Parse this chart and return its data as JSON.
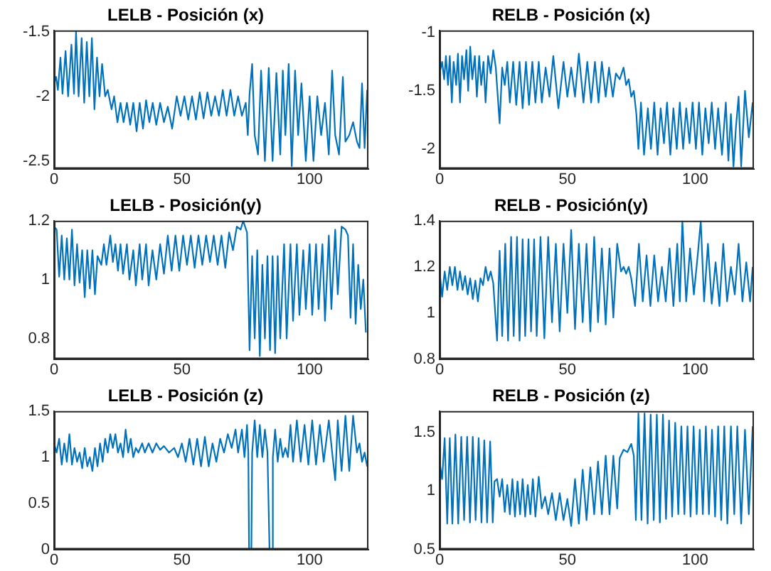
{
  "chart_data": [
    {
      "type": "line",
      "title": "LELB - Posición (x)",
      "color": "#0072bd",
      "xlim": [
        0,
        123
      ],
      "xticks": [
        0,
        50,
        100
      ],
      "ylim": [
        -2.56,
        -1.49
      ],
      "yticks": [
        -2.5,
        -2,
        -1.5
      ],
      "x": [
        0,
        0.8,
        1.5,
        2.5,
        3.3,
        4.5,
        5.5,
        6.8,
        7.8,
        8.6,
        9.6,
        10.8,
        11.8,
        12.8,
        13.8,
        14.8,
        15.8,
        16.8,
        17.8,
        18.8,
        20,
        21,
        22.5,
        23.5,
        24.8,
        26,
        27.2,
        28.5,
        29.8,
        31,
        32.3,
        33.5,
        34.8,
        36,
        37.3,
        38.6,
        40,
        41.5,
        43,
        44.5,
        46.2,
        48,
        49.5,
        51,
        52.5,
        54,
        55.5,
        57,
        58.5,
        60,
        61.5,
        63,
        64.5,
        66,
        67.5,
        69,
        70.5,
        72,
        73.5,
        75,
        75.8,
        76.5,
        77.5,
        78.5,
        79.8,
        81,
        82.5,
        84,
        85.5,
        87,
        88.5,
        89.5,
        90.5,
        91.8,
        93,
        94.3,
        95.5,
        96.8,
        98.5,
        100,
        101.5,
        103,
        104.5,
        106,
        107.5,
        108.8,
        110,
        111.5,
        113,
        114,
        115.5,
        117,
        118.5,
        119.5,
        120.5,
        121.5,
        122.5
      ],
      "values": [
        -1.9,
        -1.85,
        -1.95,
        -1.7,
        -1.98,
        -1.65,
        -2,
        -1.6,
        -1.98,
        -1.5,
        -2,
        -1.55,
        -2.05,
        -1.58,
        -2,
        -1.55,
        -2.1,
        -1.7,
        -2,
        -1.75,
        -2,
        -1.95,
        -2.1,
        -2,
        -2.2,
        -2.05,
        -2.2,
        -2.05,
        -2.22,
        -2.05,
        -2.27,
        -2.05,
        -2.25,
        -2.03,
        -2.2,
        -2.05,
        -2.22,
        -2.05,
        -2.2,
        -2.08,
        -2.25,
        -2,
        -2.15,
        -2,
        -2.18,
        -2,
        -2.18,
        -1.97,
        -2.17,
        -1.97,
        -2.15,
        -2,
        -2.15,
        -1.95,
        -2.15,
        -1.95,
        -2.15,
        -2,
        -2.15,
        -2.05,
        -2.3,
        -1.98,
        -1.75,
        -2.3,
        -2.45,
        -1.8,
        -2.5,
        -1.78,
        -2.5,
        -1.82,
        -2.45,
        -1.8,
        -2.3,
        -1.75,
        -2.54,
        -1.8,
        -2.3,
        -1.9,
        -2.5,
        -2,
        -2.5,
        -2,
        -2.3,
        -2.05,
        -2.45,
        -1.8,
        -2.3,
        -2.45,
        -1.85,
        -2.35,
        -2.3,
        -2.2,
        -2.35,
        -2.4,
        -1.9,
        -2.4,
        -1.95
      ]
    },
    {
      "type": "line",
      "title": "RELB - Posición (x)",
      "color": "#0072bd",
      "xlim": [
        0,
        123
      ],
      "xticks": [
        0,
        50,
        100
      ],
      "ylim": [
        -2.17,
        -0.98
      ],
      "yticks": [
        -2,
        -1.5,
        -1
      ],
      "x": [
        0,
        1,
        1.8,
        2.5,
        3.3,
        4,
        4.8,
        5.5,
        6.5,
        7.2,
        8,
        8.8,
        9.6,
        10.5,
        11.2,
        12,
        12.8,
        13.8,
        14.6,
        15.5,
        16.3,
        17.2,
        18,
        19,
        20,
        21,
        22,
        23.5,
        24.5,
        25.5,
        26.5,
        27.5,
        28.8,
        30,
        31.3,
        32.5,
        33.8,
        35,
        36.3,
        37.5,
        38.8,
        40,
        41.5,
        43,
        44.5,
        46.5,
        48.5,
        50,
        51.5,
        53,
        54.5,
        56.3,
        57.8,
        59.3,
        60.8,
        62.2,
        63.5,
        65,
        66.3,
        67.8,
        69,
        70.5,
        72,
        73,
        74,
        75,
        76,
        77,
        77.8,
        78.8,
        80,
        81.5,
        82.7,
        84,
        85.3,
        86.5,
        87.8,
        89,
        90.3,
        91.5,
        92.8,
        94,
        95.3,
        96.5,
        97.8,
        99,
        100.3,
        101.5,
        102.8,
        104,
        105.3,
        106.5,
        107.8,
        109,
        110.5,
        112,
        113,
        114,
        115,
        116,
        117,
        118,
        119.5,
        121,
        122.5
      ],
      "values": [
        -1.35,
        -1.25,
        -1.4,
        -1.2,
        -1.45,
        -1.2,
        -1.6,
        -1.25,
        -1.45,
        -1.18,
        -1.6,
        -1.2,
        -1.4,
        -1.15,
        -1.5,
        -1.12,
        -1.4,
        -1.2,
        -1.55,
        -1.2,
        -1.45,
        -1.25,
        -1.6,
        -1.2,
        -1.35,
        -1.15,
        -1.3,
        -1.78,
        -1.3,
        -1.45,
        -1.25,
        -1.6,
        -1.25,
        -1.62,
        -1.25,
        -1.65,
        -1.25,
        -1.62,
        -1.25,
        -1.6,
        -1.25,
        -1.6,
        -1.3,
        -1.55,
        -1.2,
        -1.65,
        -1.25,
        -1.55,
        -1.3,
        -1.55,
        -1.18,
        -1.6,
        -1.25,
        -1.6,
        -1.25,
        -1.6,
        -1.25,
        -1.55,
        -1.3,
        -1.55,
        -1.35,
        -1.4,
        -1.3,
        -1.45,
        -1.4,
        -1.55,
        -1.5,
        -1.7,
        -2,
        -1.6,
        -2.05,
        -1.65,
        -2,
        -1.6,
        -2.05,
        -1.65,
        -1.95,
        -1.6,
        -2.05,
        -1.65,
        -2,
        -1.6,
        -2,
        -1.65,
        -1.95,
        -1.6,
        -2,
        -1.6,
        -2.05,
        -1.65,
        -1.95,
        -1.6,
        -2,
        -1.65,
        -2.05,
        -1.6,
        -2.1,
        -1.7,
        -2.15,
        -1.8,
        -1.55,
        -2.15,
        -1.5,
        -1.9,
        -1.6
      ]
    },
    {
      "type": "line",
      "title": "LELB - Posición(y)",
      "color": "#0072bd",
      "xlim": [
        0,
        123
      ],
      "xticks": [
        0,
        50,
        100
      ],
      "ylim": [
        0.73,
        1.2
      ],
      "yticks": [
        0.8,
        1,
        1.2
      ],
      "x": [
        0,
        1,
        2,
        3,
        4,
        5,
        6,
        7,
        8,
        9,
        10,
        11,
        12,
        13,
        14,
        15,
        16,
        17,
        18.5,
        19.5,
        20.5,
        22,
        23,
        24,
        25,
        26,
        27,
        28.5,
        29.5,
        31,
        32,
        33.5,
        34.5,
        36,
        37,
        38.5,
        40,
        41.5,
        43,
        44.5,
        46,
        47.5,
        49,
        50.5,
        52,
        53.5,
        55,
        56.5,
        58,
        59.5,
        61,
        62.5,
        64,
        65.5,
        67,
        68.5,
        70,
        71.5,
        73,
        74,
        75.5,
        76.5,
        77.5,
        78.5,
        79.5,
        80.5,
        81.5,
        82.5,
        83.5,
        84.5,
        85.5,
        86.5,
        87.5,
        88.5,
        90,
        91,
        92.5,
        93.5,
        95,
        96,
        97.5,
        98.5,
        100,
        101,
        102.5,
        103.5,
        105,
        106,
        107.5,
        108.5,
        110,
        111,
        112.5,
        114,
        115,
        116,
        117,
        118,
        119,
        120,
        121,
        122
      ],
      "values": [
        1.18,
        1.17,
        1.01,
        1.15,
        1,
        1.14,
        1,
        1.17,
        0.98,
        1.12,
        0.99,
        1.1,
        0.94,
        1.1,
        0.97,
        1.1,
        0.95,
        1.08,
        1.05,
        1.12,
        1.05,
        1.15,
        1.06,
        1.12,
        1.03,
        1.12,
        1.02,
        1.12,
        1,
        1.1,
        0.98,
        1.12,
        1,
        1.12,
        0.98,
        1.1,
        1,
        1.12,
        1.02,
        1.15,
        1.03,
        1.15,
        1.03,
        1.15,
        1.05,
        1.15,
        1.04,
        1.15,
        1.05,
        1.15,
        1.06,
        1.15,
        1.05,
        1.15,
        1.04,
        1.16,
        1.1,
        1.18,
        1.17,
        1.2,
        1.16,
        0.76,
        1.08,
        0.8,
        1.1,
        0.74,
        1.05,
        0.8,
        1.08,
        0.76,
        1.08,
        0.75,
        1.08,
        0.8,
        1.12,
        0.8,
        1.12,
        0.86,
        1.12,
        0.88,
        1.1,
        0.9,
        1.12,
        0.88,
        1.12,
        0.9,
        1.12,
        0.86,
        1.15,
        0.9,
        1.17,
        0.95,
        1.18,
        1.17,
        1.15,
        0.87,
        1.12,
        0.85,
        1.05,
        0.9,
        1,
        0.82
      ]
    },
    {
      "type": "line",
      "title": "RELB - Posición(y)",
      "color": "#0072bd",
      "xlim": [
        0,
        123
      ],
      "xticks": [
        0,
        50,
        100
      ],
      "ylim": [
        0.8,
        1.4
      ],
      "yticks": [
        0.8,
        1,
        1.2,
        1.4
      ],
      "x": [
        0,
        1,
        2,
        3,
        4,
        5,
        6,
        7,
        8,
        9,
        10,
        11,
        12,
        13,
        14,
        15,
        16,
        17,
        18,
        19,
        20,
        21,
        22.5,
        23.5,
        24.5,
        25.7,
        26.8,
        28,
        29,
        30.3,
        31.3,
        32.5,
        33.5,
        34.8,
        35.8,
        37,
        38,
        39.5,
        41,
        42.5,
        44,
        45.5,
        47,
        48.5,
        50,
        51.5,
        53,
        54.5,
        56,
        57.5,
        59,
        60.5,
        62,
        63.5,
        65,
        66.5,
        68,
        69.5,
        71,
        72,
        73,
        74,
        75,
        76.5,
        78,
        79.5,
        81,
        82.5,
        84,
        85.5,
        87,
        88.5,
        90,
        91.5,
        93,
        94,
        95,
        96.5,
        98,
        99.5,
        101,
        102.2,
        103.5,
        105,
        106.5,
        108,
        109.5,
        111,
        112.5,
        114,
        115.5,
        117,
        118.5,
        120,
        121.5,
        122.5
      ],
      "values": [
        1.18,
        1.07,
        1.18,
        1.1,
        1.2,
        1.12,
        1.2,
        1.1,
        1.18,
        1.1,
        1.16,
        1.08,
        1.15,
        1.06,
        1.14,
        1.05,
        1.15,
        1.12,
        1.2,
        1.14,
        1.18,
        1.13,
        0.88,
        1.27,
        0.9,
        1.3,
        0.88,
        1.33,
        0.9,
        1.33,
        0.88,
        1.32,
        0.9,
        1.32,
        0.92,
        1.32,
        0.9,
        1.33,
        0.89,
        1.33,
        0.96,
        1.3,
        0.92,
        1.3,
        1,
        1.36,
        0.93,
        1.3,
        0.96,
        1.3,
        0.92,
        1.33,
        0.96,
        1.28,
        0.95,
        1.28,
        0.98,
        1.3,
        1.18,
        1.2,
        1.17,
        1.2,
        1.15,
        1.03,
        1.3,
        1.05,
        1.25,
        1.03,
        1.25,
        1.05,
        1.2,
        1.05,
        1.28,
        1.03,
        1.3,
        1.05,
        1.4,
        1.05,
        1.28,
        1.08,
        1.25,
        1.4,
        1.05,
        1.3,
        1.04,
        1.22,
        1.03,
        1.3,
        1.05,
        1.2,
        1.08,
        1.3,
        1.05,
        1.22,
        1.05,
        1.2
      ]
    },
    {
      "type": "line",
      "title": "LELB - Posición (z)",
      "color": "#0072bd",
      "xlim": [
        0,
        123
      ],
      "xticks": [
        0,
        50,
        100
      ],
      "ylim": [
        0,
        1.5
      ],
      "yticks": [
        0,
        0.5,
        1,
        1.5
      ],
      "x": [
        0,
        1,
        2,
        3,
        4,
        5,
        6,
        7,
        8,
        9,
        10,
        11,
        12,
        13,
        14,
        15,
        16,
        17,
        18,
        19,
        20,
        21,
        22,
        23,
        24,
        25,
        26,
        27,
        28,
        29,
        30,
        31,
        32,
        33,
        34.5,
        35.5,
        37,
        38.5,
        40,
        41.5,
        43,
        45,
        47,
        48.5,
        50,
        51.5,
        53,
        54.5,
        56,
        57.5,
        59,
        60.5,
        62,
        63.5,
        65,
        66.5,
        68,
        69.5,
        71,
        72,
        73.5,
        74.5,
        75.5,
        76,
        76.3,
        77.2,
        77.5,
        78.5,
        79.5,
        80.5,
        81.5,
        82.5,
        83.5,
        84.3,
        85.3,
        85.6,
        86.5,
        87.5,
        88.5,
        89.5,
        90.5,
        91.5,
        92.5,
        93.5,
        95,
        96.5,
        98,
        99.5,
        101,
        102.5,
        104,
        105.5,
        107.5,
        109,
        110,
        111,
        112.5,
        114,
        115.5,
        117,
        118.5,
        119.5,
        120.5,
        121.5,
        122.5
      ],
      "values": [
        1.15,
        1.05,
        1.2,
        0.92,
        1.15,
        0.95,
        1.25,
        0.92,
        1.1,
        0.95,
        1.05,
        0.88,
        1.1,
        0.9,
        1,
        0.85,
        1.1,
        0.9,
        1.15,
        0.95,
        1.2,
        1.05,
        1.25,
        1.1,
        1.25,
        1.05,
        1.15,
        1,
        1.3,
        1.05,
        1.2,
        1,
        1.1,
        1.05,
        1.15,
        1.05,
        1.15,
        1.05,
        1.15,
        1.08,
        1.12,
        1.05,
        1.1,
        1,
        1.15,
        0.95,
        1.2,
        0.92,
        1.2,
        0.9,
        1.22,
        0.9,
        1.15,
        0.95,
        1.2,
        1.05,
        1.25,
        1.1,
        1.3,
        1.05,
        1.3,
        1,
        1.35,
        1.05,
        0,
        0,
        1.05,
        1.4,
        1,
        1.35,
        1,
        1.3,
        1.05,
        0,
        0,
        1,
        1.3,
        0.95,
        1.2,
        1,
        1.1,
        1,
        1.35,
        0.95,
        1.4,
        0.95,
        1.35,
        0.92,
        1.4,
        0.92,
        1.35,
        0.95,
        1.4,
        1,
        0.75,
        1.4,
        0.85,
        1.45,
        0.85,
        1.45,
        1.05,
        1.15,
        0.95,
        1.05,
        0.9
      ]
    },
    {
      "type": "line",
      "title": "RELB - Posición (z)",
      "color": "#0072bd",
      "xlim": [
        0,
        123
      ],
      "xticks": [
        0,
        50,
        100
      ],
      "ylim": [
        0.5,
        1.68
      ],
      "yticks": [
        0.5,
        1,
        1.5
      ],
      "x": [
        0,
        1,
        2,
        3,
        4,
        5,
        6.2,
        7.3,
        8.5,
        9.6,
        10.8,
        11.9,
        13,
        14.1,
        15.3,
        16.4,
        17.5,
        18.6,
        19.8,
        20.8,
        21.5,
        22.5,
        23.5,
        24.5,
        25.5,
        26.5,
        27.5,
        28.5,
        29.5,
        30.5,
        31.5,
        32.5,
        33.5,
        34.5,
        35.5,
        36.5,
        37.5,
        38.8,
        40,
        41.3,
        42.5,
        44,
        45.5,
        47,
        48.5,
        50,
        51.5,
        53,
        54.5,
        56,
        57.5,
        59,
        60.5,
        62,
        63.5,
        65,
        66.5,
        68,
        69.5,
        70.5,
        72,
        73.5,
        75,
        76,
        76.8,
        77.8,
        79,
        80.2,
        81.4,
        82.6,
        83.8,
        85,
        86.2,
        87.4,
        88.6,
        89.8,
        91,
        92.2,
        93.4,
        94.6,
        95.8,
        97,
        98.2,
        99.4,
        100.6,
        101.8,
        103,
        104.2,
        105.4,
        106.6,
        107.8,
        109,
        110.2,
        111.4,
        112.6,
        114,
        115.3,
        116.5,
        118,
        119.5,
        121,
        122.5
      ],
      "values": [
        1.25,
        1.1,
        1.45,
        0.72,
        1.45,
        0.72,
        1.48,
        0.72,
        1.46,
        0.75,
        1.46,
        0.73,
        1.46,
        0.75,
        1.45,
        0.73,
        1.43,
        0.73,
        1.42,
        0.73,
        1.08,
        1.1,
        0.95,
        1.1,
        0.82,
        1.05,
        0.8,
        1.1,
        0.78,
        1.08,
        0.8,
        1.1,
        0.78,
        1.05,
        0.8,
        1.1,
        0.78,
        1.12,
        0.85,
        0.95,
        0.8,
        0.98,
        0.75,
        0.98,
        0.75,
        0.93,
        0.7,
        1.1,
        0.72,
        1.18,
        0.75,
        1.2,
        0.8,
        1.25,
        0.8,
        1.3,
        0.8,
        1.3,
        0.85,
        1.28,
        1.35,
        1.33,
        1.4,
        1.3,
        0.75,
        1.66,
        0.75,
        1.66,
        0.72,
        1.65,
        0.75,
        1.65,
        0.73,
        1.65,
        0.76,
        1.6,
        0.78,
        1.58,
        0.8,
        1.55,
        0.8,
        1.55,
        0.78,
        1.55,
        0.8,
        1.52,
        0.8,
        1.55,
        0.8,
        1.52,
        0.78,
        1.55,
        0.75,
        1.55,
        0.72,
        1.55,
        0.8,
        1.55,
        0.72,
        1.52,
        0.8,
        1.55
      ]
    }
  ]
}
